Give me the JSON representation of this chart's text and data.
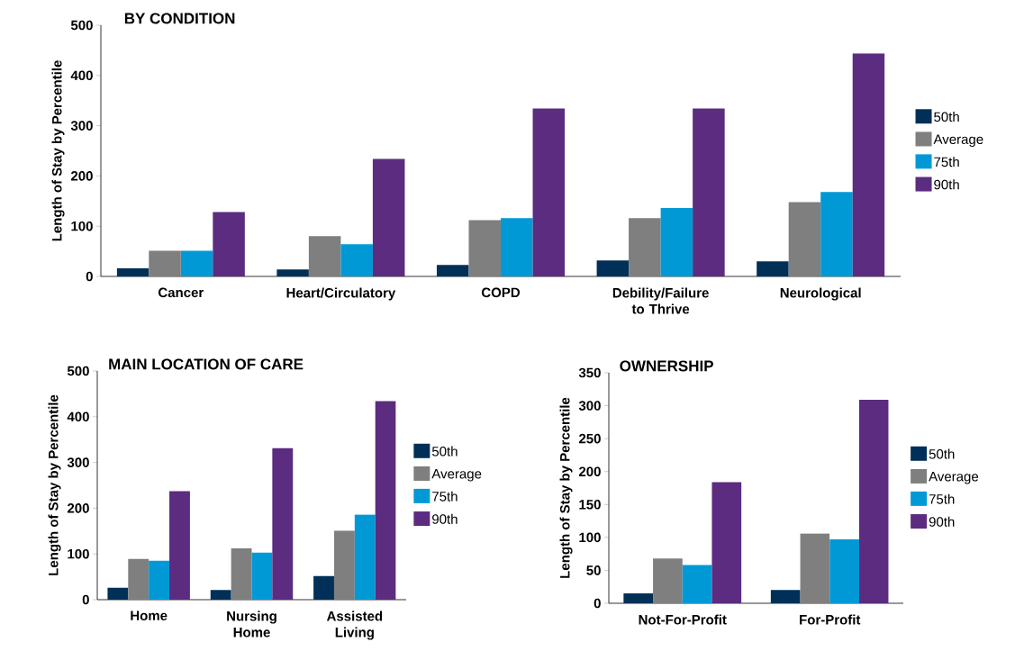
{
  "chart_data": [
    {
      "type": "bar",
      "title": "BY CONDITION",
      "ylabel": "Length of Stay by Percentile",
      "categories": [
        "Cancer",
        "Heart/Circulatory",
        "COPD",
        "Debility/Failure to Thrive",
        "Neurological"
      ],
      "ylim": [
        0,
        500
      ],
      "yticks": [
        0,
        100,
        200,
        300,
        400,
        500
      ],
      "legend": "right",
      "series": [
        {
          "name": "50th",
          "color": "#003057",
          "values": [
            16,
            14,
            23,
            32,
            30
          ]
        },
        {
          "name": "Average",
          "color": "#7f7f7f",
          "values": [
            51,
            80,
            112,
            116,
            148
          ]
        },
        {
          "name": "75th",
          "color": "#0099d6",
          "values": [
            51,
            64,
            116,
            136,
            168
          ]
        },
        {
          "name": "90th",
          "color": "#5b2c7f",
          "values": [
            128,
            234,
            334,
            334,
            444
          ]
        }
      ]
    },
    {
      "type": "bar",
      "title": "MAIN LOCATION OF CARE",
      "ylabel": "Length of Stay by Percentile",
      "categories": [
        "Home",
        "Nursing Home",
        "Assisted Living"
      ],
      "ylim": [
        0,
        500
      ],
      "yticks": [
        0,
        100,
        200,
        300,
        400,
        500
      ],
      "legend": "right",
      "series": [
        {
          "name": "50th",
          "color": "#003057",
          "values": [
            26,
            21,
            52
          ]
        },
        {
          "name": "Average",
          "color": "#7f7f7f",
          "values": [
            89,
            112,
            151
          ]
        },
        {
          "name": "75th",
          "color": "#0099d6",
          "values": [
            85,
            103,
            186
          ]
        },
        {
          "name": "90th",
          "color": "#5b2c7f",
          "values": [
            237,
            331,
            434
          ]
        }
      ]
    },
    {
      "type": "bar",
      "title": "OWNERSHIP",
      "ylabel": "Length of Stay by Percentile",
      "categories": [
        "Not-For-Profit",
        "For-Profit"
      ],
      "ylim": [
        0,
        350
      ],
      "yticks": [
        0,
        50,
        100,
        150,
        200,
        250,
        300,
        350
      ],
      "legend": "right",
      "series": [
        {
          "name": "50th",
          "color": "#003057",
          "values": [
            15,
            20
          ]
        },
        {
          "name": "Average",
          "color": "#7f7f7f",
          "values": [
            68,
            106
          ]
        },
        {
          "name": "75th",
          "color": "#0099d6",
          "values": [
            58,
            97
          ]
        },
        {
          "name": "90th",
          "color": "#5b2c7f",
          "values": [
            184,
            309
          ]
        }
      ]
    }
  ]
}
